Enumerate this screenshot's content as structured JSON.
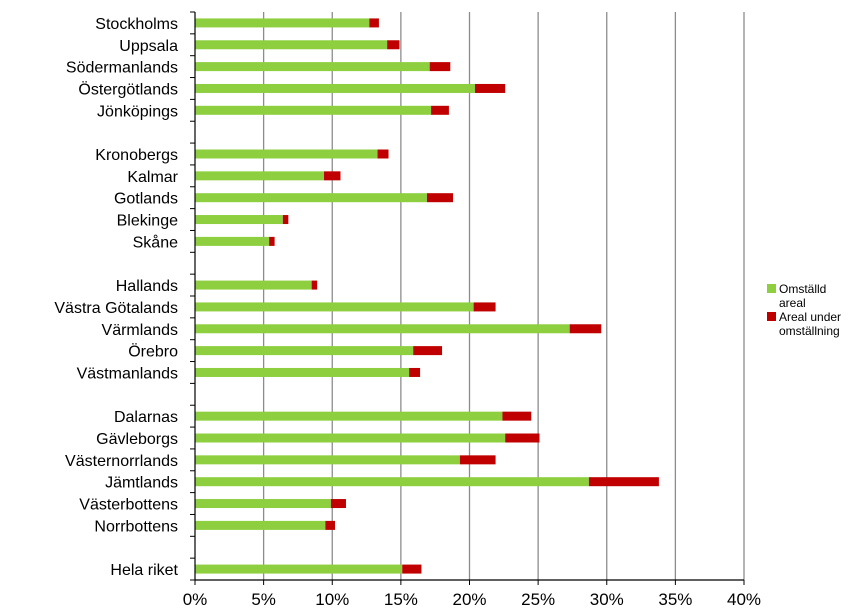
{
  "chart_data": {
    "type": "bar",
    "orientation": "horizontal",
    "stacked": true,
    "categories": [
      "Stockholms",
      "Uppsala",
      "Södermanlands",
      "Östergötlands",
      "Jönköpings",
      "",
      "Kronobergs",
      "Kalmar",
      "Gotlands",
      "Blekinge",
      "Skåne",
      "",
      "Hallands",
      "Västra Götalands",
      "Värmlands",
      "Örebro",
      "Västmanlands",
      "",
      "Dalarnas",
      "Gävleborgs",
      "Västernorrlands",
      "Jämtlands",
      "Västerbottens",
      "Norrbottens",
      "",
      "Hela riket"
    ],
    "series": [
      {
        "name": "Omställd areal",
        "color": "#8dcf3f",
        "values": [
          12.7,
          14.0,
          17.1,
          20.4,
          17.2,
          null,
          13.3,
          9.4,
          16.9,
          6.4,
          5.4,
          null,
          8.5,
          20.3,
          27.3,
          15.9,
          15.6,
          null,
          22.4,
          22.6,
          19.3,
          28.7,
          9.9,
          9.5,
          null,
          15.1
        ]
      },
      {
        "name": "Areal under omställning",
        "color": "#c00000",
        "values": [
          0.7,
          0.9,
          1.5,
          2.2,
          1.3,
          null,
          0.8,
          1.2,
          1.9,
          0.4,
          0.4,
          null,
          0.4,
          1.6,
          2.3,
          2.1,
          0.8,
          null,
          2.1,
          2.5,
          2.6,
          5.1,
          1.1,
          0.7,
          null,
          1.4
        ]
      }
    ],
    "xlim": [
      0,
      40
    ],
    "xticks": [
      "0%",
      "5%",
      "10%",
      "15%",
      "20%",
      "25%",
      "30%",
      "35%",
      "40%"
    ],
    "grid": true,
    "legend": {
      "placement": "right",
      "entries": [
        {
          "lines": [
            "Omställd",
            "areal"
          ]
        },
        {
          "lines": [
            "Areal under",
            "omställning"
          ]
        }
      ]
    }
  }
}
